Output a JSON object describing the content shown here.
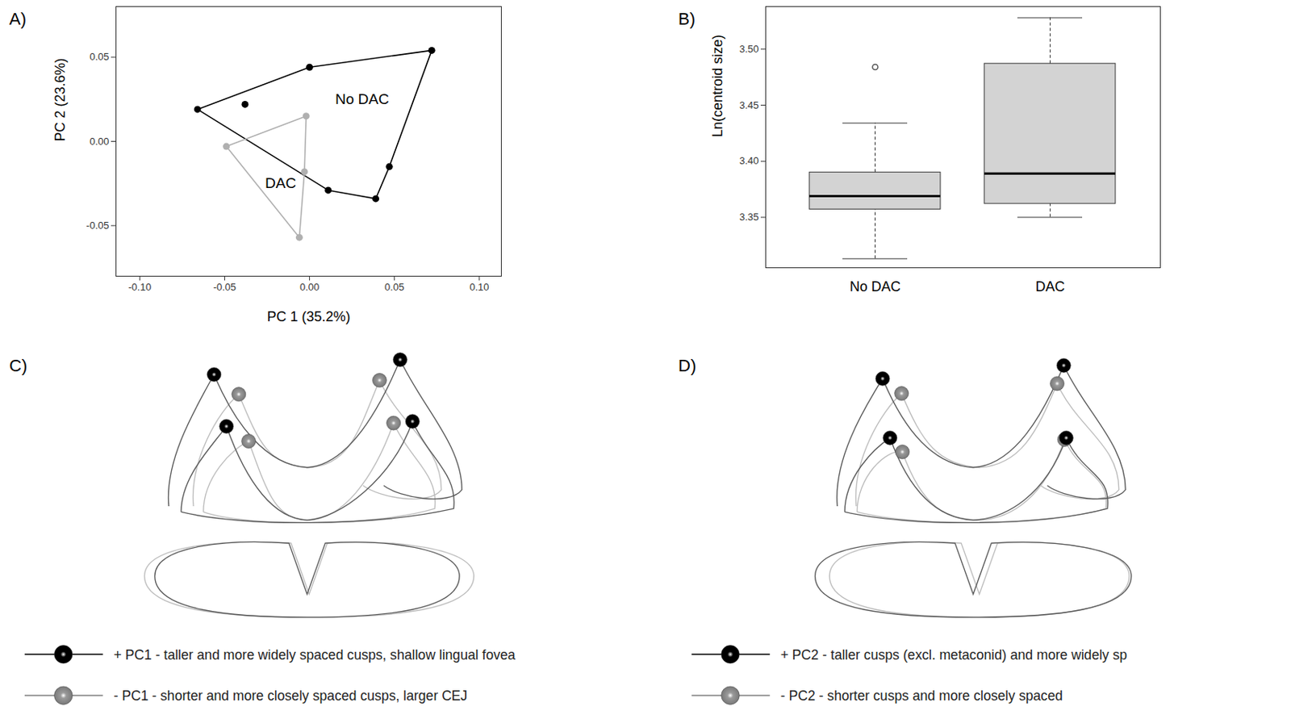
{
  "chart_data": [
    {
      "panel": "A)",
      "type": "scatter",
      "xlabel": "PC 1 (35.2%)",
      "ylabel": "PC 2 (23.6%)",
      "xlim": [
        -0.114,
        0.113
      ],
      "ylim": [
        -0.08,
        0.08
      ],
      "xticks": [
        {
          "value": -0.1,
          "label": "-0.10"
        },
        {
          "value": -0.05,
          "label": "-0.05"
        },
        {
          "value": 0,
          "label": "0.00"
        },
        {
          "value": 0.05,
          "label": "0.05"
        },
        {
          "value": 0.1,
          "label": "0.10"
        }
      ],
      "yticks": [
        {
          "value": -0.05,
          "label": "-0.05"
        },
        {
          "value": 0,
          "label": "0.00"
        },
        {
          "value": 0.05,
          "label": "0.05"
        }
      ],
      "series": [
        {
          "name": "No DAC",
          "color": "#000000",
          "marker": "circle",
          "x": [
            -0.066,
            -0.038,
            0.0,
            0.072,
            0.047,
            0.039,
            0.011
          ],
          "y": [
            0.019,
            0.022,
            0.044,
            0.054,
            -0.015,
            -0.034,
            -0.029
          ],
          "label_x": 0.031,
          "label_y": 0.025
        },
        {
          "name": "DAC",
          "color": "#b0b0b0",
          "marker": "circle",
          "x": [
            -0.049,
            -0.002,
            -0.003,
            -0.006
          ],
          "y": [
            -0.003,
            0.015,
            -0.018,
            -0.057
          ],
          "label_x": -0.017,
          "label_y": -0.025
        }
      ]
    },
    {
      "panel": "B)",
      "type": "box",
      "ylabel": "Ln(centroid size)",
      "categories": [
        "No DAC",
        "DAC"
      ],
      "color": "#d3d3d3",
      "ylim": [
        3.305,
        3.538
      ],
      "yticks": [
        {
          "value": 3.35,
          "label": "3.35"
        },
        {
          "value": 3.4,
          "label": "3.40"
        },
        {
          "value": 3.45,
          "label": "3.45"
        },
        {
          "value": 3.5,
          "label": "3.50"
        }
      ],
      "whisker_low": [
        3.313,
        3.35
      ],
      "q1": [
        3.357,
        3.362
      ],
      "median": [
        3.369,
        3.389
      ],
      "q3": [
        3.39,
        3.487
      ],
      "whisker_high": [
        3.434,
        3.528
      ],
      "outliers": [
        [
          3.484
        ],
        []
      ]
    }
  ],
  "diagrams": [
    {
      "panel": "C)",
      "legend": [
        {
          "text": "+ PC1 - taller and more widely spaced cusps, shallow lingual fovea",
          "color": "#000000"
        },
        {
          "text": "- PC1 - shorter and more closely spaced cusps, larger CEJ",
          "color": "#9a9a9a"
        }
      ]
    },
    {
      "panel": "D)",
      "legend": [
        {
          "text": "+ PC2 - taller cusps (excl. metaconid) and more widely sp",
          "color": "#000000"
        },
        {
          "text": "- PC2 - shorter cusps and more closely spaced",
          "color": "#9a9a9a"
        }
      ]
    }
  ]
}
